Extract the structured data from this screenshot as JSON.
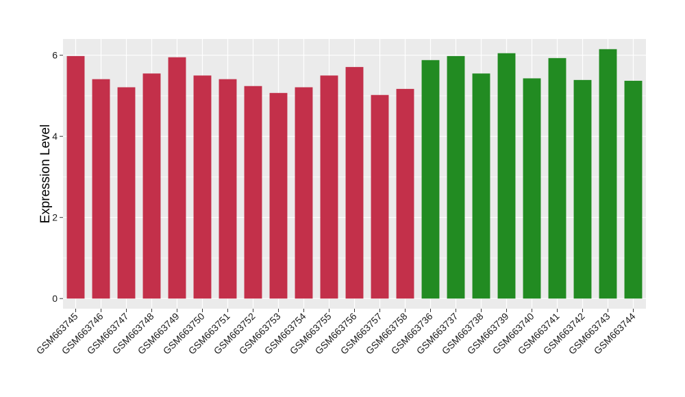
{
  "colors": {
    "panel_background": "#ebebeb",
    "gridline": "#ffffff",
    "tick_color": "#333333",
    "group_1": "#c3304a",
    "group_2": "#228b22"
  },
  "chart_data": {
    "type": "bar",
    "title": "",
    "xlabel": "",
    "ylabel": "Expression Level",
    "ylim": [
      -0.25,
      6.4
    ],
    "yticks": [
      0,
      2,
      4,
      6
    ],
    "grid": true,
    "legend": "none",
    "categories": [
      "GSM663745",
      "GSM663746",
      "GSM663747",
      "GSM663748",
      "GSM663749",
      "GSM663750",
      "GSM663751",
      "GSM663752",
      "GSM663753",
      "GSM663754",
      "GSM663755",
      "GSM663756",
      "GSM663757",
      "GSM663758",
      "GSM663736",
      "GSM663737",
      "GSM663738",
      "GSM663739",
      "GSM663740",
      "GSM663741",
      "GSM663742",
      "GSM663743",
      "GSM663744"
    ],
    "values": [
      5.98,
      5.41,
      5.21,
      5.55,
      5.95,
      5.5,
      5.41,
      5.24,
      5.07,
      5.21,
      5.5,
      5.71,
      5.02,
      5.17,
      5.88,
      5.98,
      5.55,
      6.05,
      5.43,
      5.93,
      5.39,
      6.15,
      5.37
    ],
    "bar_colors": [
      "#c3304a",
      "#c3304a",
      "#c3304a",
      "#c3304a",
      "#c3304a",
      "#c3304a",
      "#c3304a",
      "#c3304a",
      "#c3304a",
      "#c3304a",
      "#c3304a",
      "#c3304a",
      "#c3304a",
      "#c3304a",
      "#228b22",
      "#228b22",
      "#228b22",
      "#228b22",
      "#228b22",
      "#228b22",
      "#228b22",
      "#228b22",
      "#228b22"
    ]
  }
}
